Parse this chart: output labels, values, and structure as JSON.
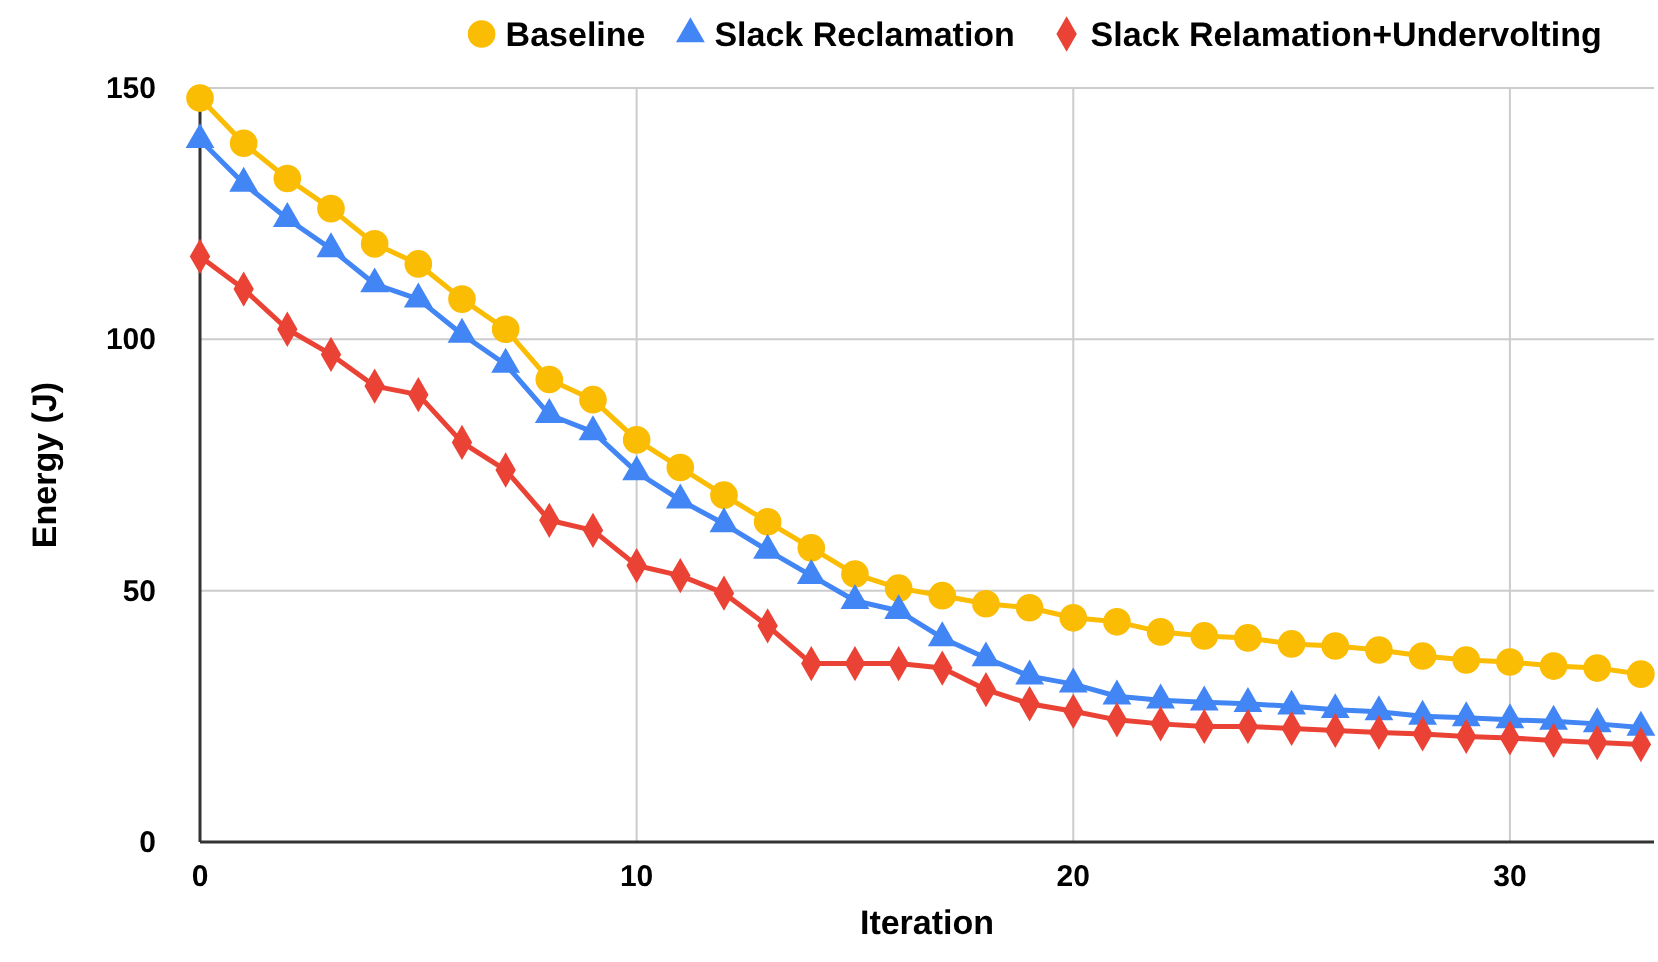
{
  "chart_data": {
    "type": "line",
    "xlabel": "Iteration",
    "ylabel": "Energy (J)",
    "x": [
      0,
      1,
      2,
      3,
      4,
      5,
      6,
      7,
      8,
      9,
      10,
      11,
      12,
      13,
      14,
      15,
      16,
      17,
      18,
      19,
      20,
      21,
      22,
      23,
      24,
      25,
      26,
      27,
      28,
      29,
      30,
      31,
      32,
      33
    ],
    "xlim": [
      0,
      33.3
    ],
    "xticks": [
      0,
      10,
      20,
      30
    ],
    "ylim": [
      0,
      150
    ],
    "yticks": [
      0,
      50,
      100,
      150
    ],
    "grid": true,
    "legend": "top right",
    "series": [
      {
        "name": "Baseline",
        "color": "#fbbc04",
        "marker": "circle",
        "values": [
          148,
          139,
          132,
          126,
          119,
          115,
          108,
          102,
          92,
          88,
          80,
          74.5,
          69,
          63.7,
          58.5,
          53.3,
          50.5,
          49,
          47.4,
          46.6,
          44.6,
          43.8,
          41.8,
          41,
          40.6,
          39.4,
          39,
          38.2,
          37,
          36.2,
          35.8,
          35,
          34.6,
          33.4
        ]
      },
      {
        "name": "Slack Reclamation",
        "color": "#4285f4",
        "marker": "triangle",
        "values": [
          139.7,
          131,
          124,
          118,
          111,
          108,
          101,
          95,
          85,
          81.6,
          73.6,
          68,
          63.3,
          58,
          53,
          48,
          46,
          40.6,
          36.6,
          33,
          31.4,
          29,
          28.2,
          27.8,
          27.5,
          27,
          26.3,
          25.9,
          25,
          24.7,
          24.3,
          24,
          23.5,
          22.8
        ]
      },
      {
        "name": "Slack Relamation+Undervolting",
        "color": "#ea4335",
        "marker": "diamond",
        "values": [
          116.5,
          110,
          102,
          97,
          90.7,
          89,
          79.5,
          74,
          64,
          62,
          55,
          53,
          49.5,
          43,
          35.5,
          35.5,
          35.5,
          34.6,
          30.3,
          27.5,
          26,
          24.3,
          23.5,
          23,
          23,
          22.6,
          22.2,
          21.8,
          21.5,
          21,
          20.7,
          20.2,
          19.8,
          19.4
        ]
      }
    ]
  }
}
